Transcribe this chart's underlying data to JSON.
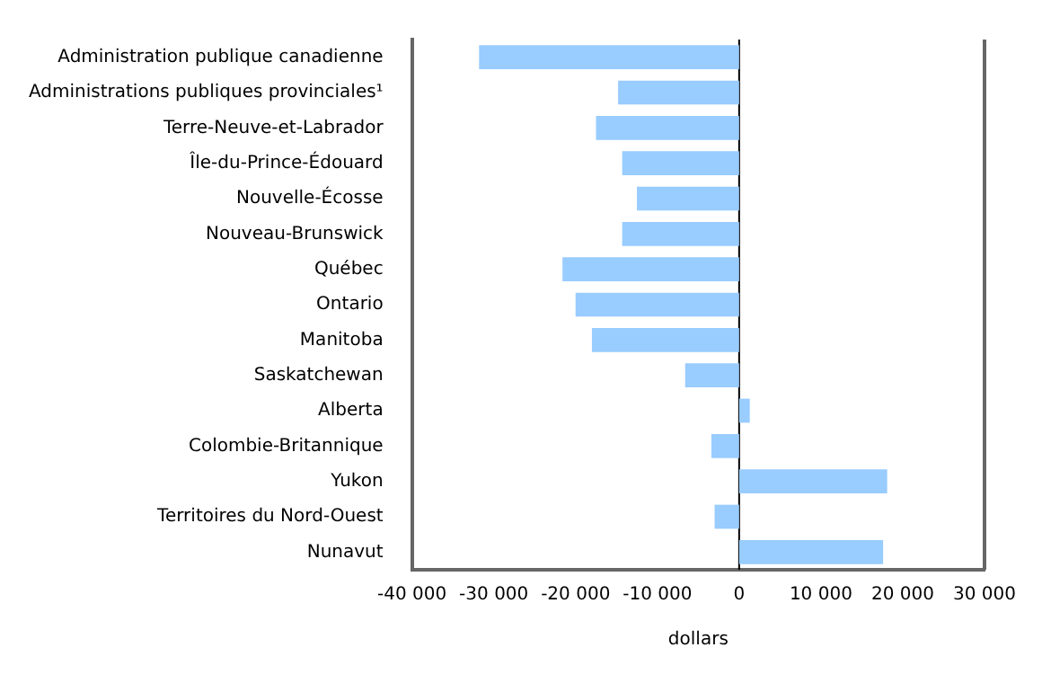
{
  "chart_data": {
    "type": "bar",
    "orientation": "horizontal",
    "xlabel": "dollars",
    "categories": [
      "Administration publique canadienne",
      "Administrations publiques provinciales¹",
      "Terre-Neuve-et-Labrador",
      "Île-du-Prince-Édouard",
      "Nouvelle-Écosse",
      "Nouveau-Brunswick",
      "Québec",
      "Ontario",
      "Manitoba",
      "Saskatchewan",
      "Alberta",
      "Colombie-Britannique",
      "Yukon",
      "Territoires du Nord-Ouest",
      "Nunavut"
    ],
    "values": [
      -31800,
      -14800,
      -17500,
      -14300,
      -12500,
      -14300,
      -21600,
      -20000,
      -18000,
      -6600,
      1300,
      -3400,
      18100,
      -3000,
      17600
    ],
    "color": "#99ccff",
    "xlim": [
      -40000,
      30000
    ],
    "xticks": [
      {
        "value": -40000,
        "label": "-40 000"
      },
      {
        "value": -30000,
        "label": "-30 000"
      },
      {
        "value": -20000,
        "label": "-20 000"
      },
      {
        "value": -10000,
        "label": "-10 000"
      },
      0,
      {
        "value": 10000,
        "label": "10 000"
      },
      {
        "value": 20000,
        "label": "20 000"
      },
      {
        "value": 30000,
        "label": "30 000"
      }
    ],
    "ref_lines": [
      {
        "axis": "x",
        "value": 0,
        "color": "#000000"
      }
    ],
    "grid": false,
    "legend": false
  }
}
